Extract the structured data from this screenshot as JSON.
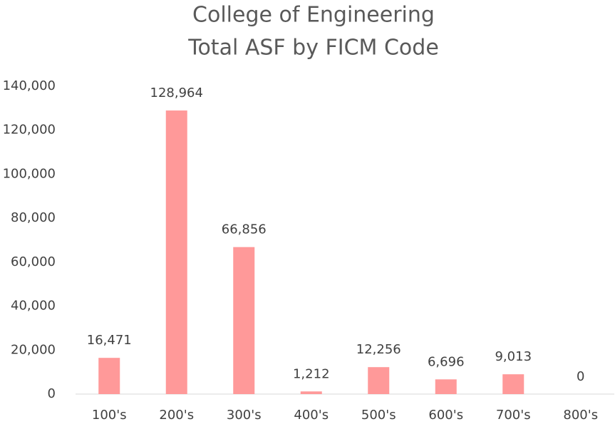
{
  "chart_data": {
    "type": "bar",
    "title": [
      "College of Engineering",
      "Total ASF by FICM Code"
    ],
    "categories": [
      "100's",
      "200's",
      "300's",
      "400's",
      "500's",
      "600's",
      "700's",
      "800's"
    ],
    "values": [
      16471,
      128964,
      66856,
      1212,
      12256,
      6696,
      9013,
      0
    ],
    "value_labels": [
      "16,471",
      "128,964",
      "66,856",
      "1,212",
      "12,256",
      "6,696",
      "9,013",
      "0"
    ],
    "color": "#ff9999",
    "ylim": [
      0,
      140000
    ],
    "yticks": [
      0,
      {
        "value": 20000,
        "label": "20,000"
      },
      {
        "value": 40000,
        "label": "40,000"
      },
      {
        "value": 60000,
        "label": "60,000"
      },
      {
        "value": 80000,
        "label": "80,000"
      },
      {
        "value": 100000,
        "label": "100,000"
      },
      {
        "value": 120000,
        "label": "120,000"
      },
      {
        "value": 140000,
        "label": "140,000"
      }
    ],
    "grid": false
  }
}
